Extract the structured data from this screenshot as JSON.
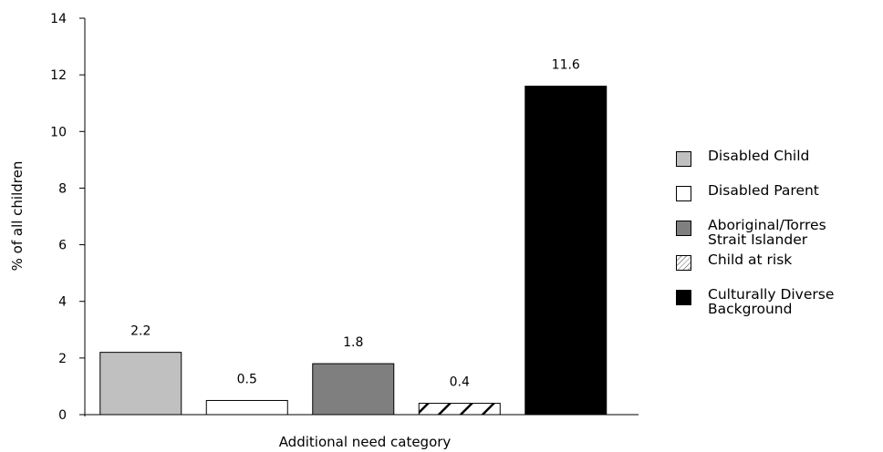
{
  "chart_data": {
    "type": "bar",
    "categories": [
      "Disabled Child",
      "Disabled Parent",
      "Aboriginal/Torres\nStrait Islander",
      "Child at risk",
      "Culturally Diverse\nBackground"
    ],
    "values": [
      2.2,
      0.5,
      1.8,
      0.4,
      11.6
    ],
    "value_labels": [
      "2.2",
      "0.5",
      "1.8",
      "0.4",
      "11.6"
    ],
    "xlabel": "Additional need category",
    "ylabel": "% of all children",
    "ylim": [
      0,
      14
    ],
    "yticks": [
      0,
      2,
      4,
      6,
      8,
      10,
      12,
      14
    ],
    "grid": false,
    "legend": "right",
    "series_colors": [
      "#c0c0c0",
      "#ffffff",
      "#7f7f7f",
      "hatch",
      "#000000"
    ]
  }
}
